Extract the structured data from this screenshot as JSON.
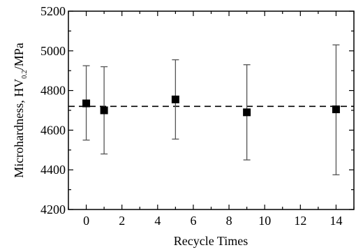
{
  "chart_data": {
    "type": "scatter",
    "xlabel": "Recycle Times",
    "ylabel": {
      "prefix": "Microhardness, HV",
      "subscript": "0.2",
      "suffix": "/MPa"
    },
    "xlim": [
      -1,
      15
    ],
    "ylim": [
      4200,
      5200
    ],
    "xticks": [
      0,
      2,
      4,
      6,
      8,
      10,
      12,
      14
    ],
    "yticks": [
      4200,
      4400,
      4600,
      4800,
      5000,
      5200
    ],
    "reference_line": {
      "y": 4720,
      "style": "dashed",
      "color": "#000000"
    },
    "series": [
      {
        "marker": "square",
        "color": "#000000",
        "error_bar_color": "#555555",
        "points": [
          {
            "x": 0,
            "y": 4735,
            "low": 4550,
            "high": 4925
          },
          {
            "x": 1,
            "y": 4700,
            "low": 4480,
            "high": 4920
          },
          {
            "x": 5,
            "y": 4755,
            "low": 4555,
            "high": 4955
          },
          {
            "x": 9,
            "y": 4690,
            "low": 4450,
            "high": 4930
          },
          {
            "x": 14,
            "y": 4705,
            "low": 4375,
            "high": 5030
          }
        ]
      }
    ],
    "grid": false
  }
}
